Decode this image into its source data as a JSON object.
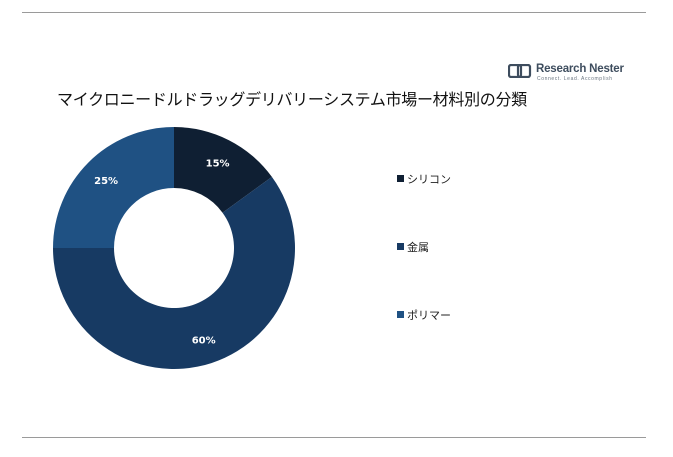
{
  "brand": {
    "name": "Research Nester",
    "tagline": "Connect. Lead. Accomplish"
  },
  "chart_data": {
    "type": "pie",
    "variant": "donut",
    "title": "マイクロニードルドラッグデリバリーシステム市場ー材料別の分類",
    "categories": [
      "シリコン",
      "金属",
      "ポリマー"
    ],
    "values": [
      15,
      60,
      25
    ],
    "labels": [
      "15%",
      "60%",
      "25%"
    ],
    "unit": "%",
    "colors": [
      "#0f1f33",
      "#173a63",
      "#1f5183"
    ],
    "label_color": "#ffffff",
    "legend_position": "right"
  }
}
